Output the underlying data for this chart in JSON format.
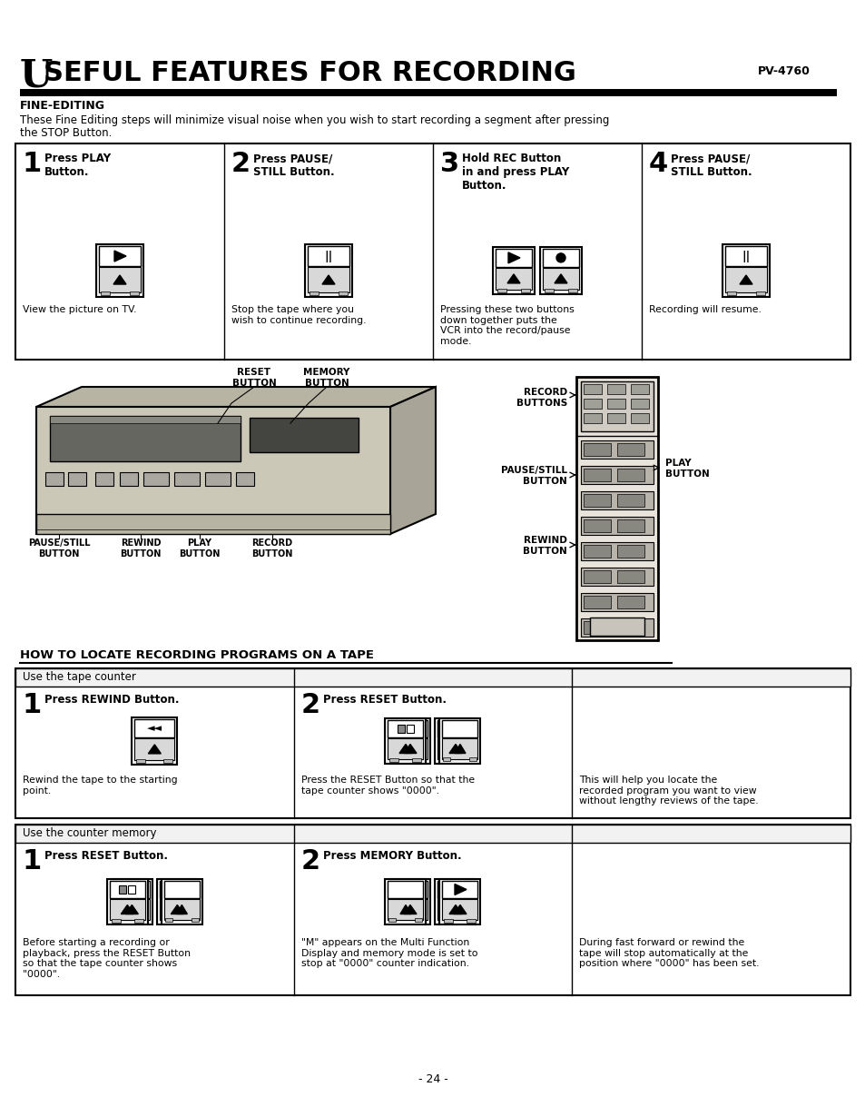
{
  "bg_color": "#ffffff",
  "page_width": 9.54,
  "page_height": 12.08,
  "dpi": 100,
  "title_U": "U",
  "title_rest": "SEFUL FEATURES FOR RECORDING",
  "model": "PV-4760",
  "section1_header": "FINE-EDITING",
  "section1_body1": "These Fine Editing steps will minimize visual noise when you wish to start recording a segment after pressing",
  "section1_body2": "the STOP Button.",
  "steps": [
    {
      "num": "1",
      "title": "Press PLAY\nButton.",
      "desc": "View the picture on TV.",
      "symbol": "play"
    },
    {
      "num": "2",
      "title": "Press PAUSE/\nSTILL Button.",
      "desc": "Stop the tape where you\nwish to continue recording.",
      "symbol": "pause"
    },
    {
      "num": "3",
      "title": "Hold REC Button\nin and press PLAY\nButton.",
      "desc": "Pressing these two buttons\ndown together puts the\nVCR into the record/pause\nmode.",
      "symbol": "play_rec"
    },
    {
      "num": "4",
      "title": "Press PAUSE/\nSTILL Button.",
      "desc": "Recording will resume.",
      "symbol": "pause"
    }
  ],
  "locate_header": "HOW TO LOCATE RECORDING PROGRAMS ON A TAPE",
  "tape_counter_label": "Use the tape counter",
  "tape_steps": [
    {
      "num": "1",
      "title": "Press REWIND Button.",
      "desc": "Rewind the tape to the starting\npoint.",
      "symbol": "rewind"
    },
    {
      "num": "2",
      "title": "Press RESET Button.",
      "desc": "Press the RESET Button so that the\ntape counter shows \"0000\".",
      "symbol": "reset"
    },
    {
      "num": "",
      "title": "",
      "desc": "This will help you locate the\nrecorded program you want to view\nwithout lengthy reviews of the tape.",
      "symbol": "none"
    }
  ],
  "counter_memory_label": "Use the counter memory",
  "memory_steps": [
    {
      "num": "1",
      "title": "Press RESET Button.",
      "desc": "Before starting a recording or\nplayback, press the RESET Button\nso that the tape counter shows\n\"0000\".",
      "symbol": "reset_pair"
    },
    {
      "num": "2",
      "title": "Press MEMORY Button.",
      "desc": "\"M\" appears on the Multi Function\nDisplay and memory mode is set to\nstop at \"0000\" counter indication.",
      "symbol": "reset_mem"
    },
    {
      "num": "",
      "title": "",
      "desc": "During fast forward or rewind the\ntape will stop automatically at the\nposition where \"0000\" has been set.",
      "symbol": "none"
    }
  ],
  "page_num": "- 24 -"
}
